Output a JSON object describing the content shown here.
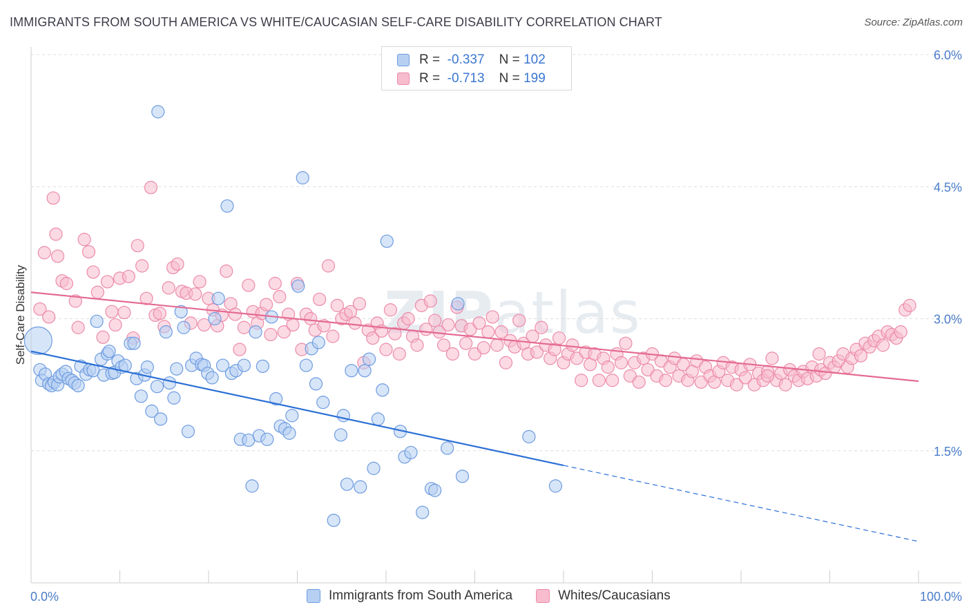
{
  "title": "IMMIGRANTS FROM SOUTH AMERICA VS WHITE/CAUCASIAN SELF-CARE DISABILITY CORRELATION CHART",
  "source": "Source: ZipAtlas.com",
  "watermark": {
    "zip": "ZIP",
    "atlas": "atlas"
  },
  "legend": {
    "rows": [
      {
        "r_label": "R =",
        "r_value": "-0.337",
        "n_label": "N =",
        "n_value": "102"
      },
      {
        "r_label": "R =",
        "r_value": "-0.713",
        "n_label": "N =",
        "n_value": "199"
      }
    ]
  },
  "colors": {
    "blue_fill": "#b7d0f2",
    "blue_stroke": "#6d9be0",
    "blue_line": "#2b6fd6",
    "pink_fill": "#f7bccd",
    "pink_stroke": "#ec8aa8",
    "pink_line": "#e46a92",
    "grid": "#dddddd",
    "axis_text": "#4a7cc9"
  },
  "chart_data": {
    "type": "scatter",
    "title": "IMMIGRANTS FROM SOUTH AMERICA VS WHITE/CAUCASIAN SELF-CARE DISABILITY CORRELATION CHART",
    "xlabel": "",
    "ylabel": "Self-Care Disability",
    "xlim": [
      0,
      100
    ],
    "ylim": [
      0,
      6.2
    ],
    "x_tick_labels": [
      "0.0%",
      "100.0%"
    ],
    "y_ticks": [
      1.5,
      3.0,
      4.5,
      6.0
    ],
    "y_tick_labels": [
      "1.5%",
      "3.0%",
      "4.5%",
      "6.0%"
    ],
    "grid": true,
    "legend_position": "bottom",
    "series": [
      {
        "name": "Immigrants from South America",
        "color": "#6d9be0",
        "trend": {
          "x0": 0,
          "y0": 2.63,
          "x1": 100,
          "y1": 0.47,
          "solid_until": 60
        },
        "points": [
          [
            0.8,
            2.75
          ],
          [
            1,
            2.42
          ],
          [
            1.2,
            2.3
          ],
          [
            1.6,
            2.37
          ],
          [
            2,
            2.26
          ],
          [
            2.3,
            2.24
          ],
          [
            2.6,
            2.28
          ],
          [
            3,
            2.25
          ],
          [
            3.2,
            2.34
          ],
          [
            3.5,
            2.37
          ],
          [
            3.9,
            2.4
          ],
          [
            4.2,
            2.32
          ],
          [
            4.6,
            2.3
          ],
          [
            4.9,
            2.27
          ],
          [
            5.3,
            2.24
          ],
          [
            5.6,
            2.46
          ],
          [
            6.2,
            2.37
          ],
          [
            6.6,
            2.42
          ],
          [
            7,
            2.41
          ],
          [
            7.4,
            2.97
          ],
          [
            7.9,
            2.54
          ],
          [
            8.2,
            2.36
          ],
          [
            8.6,
            2.6
          ],
          [
            8.8,
            2.63
          ],
          [
            9.1,
            2.38
          ],
          [
            9.4,
            2.39
          ],
          [
            9.8,
            2.52
          ],
          [
            10.2,
            2.45
          ],
          [
            10.6,
            2.47
          ],
          [
            11.2,
            2.72
          ],
          [
            11.6,
            2.72
          ],
          [
            11.9,
            2.32
          ],
          [
            12.4,
            2.12
          ],
          [
            12.8,
            2.36
          ],
          [
            13.1,
            2.45
          ],
          [
            13.6,
            1.95
          ],
          [
            14.2,
            2.23
          ],
          [
            14.6,
            1.86
          ],
          [
            15.2,
            2.85
          ],
          [
            15.6,
            2.27
          ],
          [
            16.1,
            2.1
          ],
          [
            16.4,
            2.43
          ],
          [
            16.9,
            3.08
          ],
          [
            17.2,
            2.9
          ],
          [
            17.7,
            1.72
          ],
          [
            18.1,
            2.47
          ],
          [
            18.6,
            2.55
          ],
          [
            19.2,
            2.48
          ],
          [
            19.5,
            2.47
          ],
          [
            19.9,
            2.38
          ],
          [
            14.3,
            5.35
          ],
          [
            20.4,
            2.33
          ],
          [
            20.7,
            3.0
          ],
          [
            21.1,
            3.23
          ],
          [
            21.6,
            2.47
          ],
          [
            22.1,
            4.28
          ],
          [
            22.6,
            2.38
          ],
          [
            23.1,
            2.41
          ],
          [
            23.6,
            1.63
          ],
          [
            24,
            2.47
          ],
          [
            24.5,
            1.62
          ],
          [
            24.9,
            1.1
          ],
          [
            25.3,
            2.85
          ],
          [
            25.7,
            1.67
          ],
          [
            26.1,
            2.46
          ],
          [
            26.6,
            1.63
          ],
          [
            27.1,
            3.02
          ],
          [
            27.6,
            2.09
          ],
          [
            28.1,
            1.78
          ],
          [
            28.6,
            1.75
          ],
          [
            29.1,
            1.7
          ],
          [
            29.4,
            1.9
          ],
          [
            30.1,
            3.37
          ],
          [
            30.6,
            4.6
          ],
          [
            31,
            2.47
          ],
          [
            31.6,
            2.66
          ],
          [
            32.1,
            2.26
          ],
          [
            32.4,
            2.73
          ],
          [
            32.9,
            2.05
          ],
          [
            34.1,
            0.71
          ],
          [
            34.9,
            1.68
          ],
          [
            35.2,
            1.9
          ],
          [
            35.6,
            1.12
          ],
          [
            36.1,
            2.41
          ],
          [
            37.1,
            1.09
          ],
          [
            37.6,
            2.41
          ],
          [
            38.1,
            2.54
          ],
          [
            38.6,
            1.3
          ],
          [
            39.1,
            1.86
          ],
          [
            39.6,
            2.19
          ],
          [
            40.1,
            3.88
          ],
          [
            41.6,
            1.72
          ],
          [
            42.1,
            1.43
          ],
          [
            42.8,
            1.48
          ],
          [
            44.1,
            0.8
          ],
          [
            45.1,
            1.07
          ],
          [
            45.5,
            1.05
          ],
          [
            46.9,
            1.53
          ],
          [
            48.1,
            3.17
          ],
          [
            48.6,
            1.21
          ],
          [
            56.1,
            1.66
          ],
          [
            59.1,
            1.1
          ]
        ]
      },
      {
        "name": "Whites/Caucasians",
        "color": "#ec8aa8",
        "trend": {
          "x0": 0,
          "y0": 3.3,
          "x1": 100,
          "y1": 2.29
        },
        "points": [
          [
            1,
            3.11
          ],
          [
            1.5,
            3.75
          ],
          [
            2,
            3.02
          ],
          [
            2.5,
            4.37
          ],
          [
            2.8,
            3.96
          ],
          [
            3,
            3.71
          ],
          [
            3.5,
            3.43
          ],
          [
            4,
            3.4
          ],
          [
            5,
            3.2
          ],
          [
            5.3,
            2.9
          ],
          [
            6,
            3.9
          ],
          [
            6.5,
            3.76
          ],
          [
            7,
            3.53
          ],
          [
            7.5,
            3.3
          ],
          [
            8.1,
            2.79
          ],
          [
            8.6,
            3.42
          ],
          [
            9.1,
            3.08
          ],
          [
            9.5,
            2.93
          ],
          [
            10,
            3.46
          ],
          [
            10.5,
            3.07
          ],
          [
            11,
            3.48
          ],
          [
            11.5,
            2.78
          ],
          [
            12,
            3.83
          ],
          [
            12.5,
            3.6
          ],
          [
            13,
            3.23
          ],
          [
            13.5,
            4.49
          ],
          [
            14,
            3.04
          ],
          [
            14.5,
            3.06
          ],
          [
            15,
            2.91
          ],
          [
            15.5,
            3.35
          ],
          [
            16,
            3.58
          ],
          [
            16.5,
            3.62
          ],
          [
            17,
            3.31
          ],
          [
            17.5,
            3.29
          ],
          [
            18,
            2.95
          ],
          [
            18.5,
            3.28
          ],
          [
            19,
            3.42
          ],
          [
            19.5,
            2.93
          ],
          [
            20,
            3.23
          ],
          [
            20.5,
            3.1
          ],
          [
            21,
            2.92
          ],
          [
            21.5,
            3.04
          ],
          [
            22,
            3.54
          ],
          [
            22.5,
            3.17
          ],
          [
            23,
            3.05
          ],
          [
            23.5,
            2.65
          ],
          [
            24,
            2.9
          ],
          [
            24.5,
            3.38
          ],
          [
            25,
            3.08
          ],
          [
            25.5,
            2.95
          ],
          [
            26,
            3.06
          ],
          [
            26.5,
            3.16
          ],
          [
            27,
            2.82
          ],
          [
            27.5,
            3.4
          ],
          [
            28,
            3.25
          ],
          [
            28.5,
            2.85
          ],
          [
            29,
            3.05
          ],
          [
            29.5,
            2.93
          ],
          [
            30,
            3.4
          ],
          [
            30.5,
            2.65
          ],
          [
            31,
            3.05
          ],
          [
            31.5,
            3.0
          ],
          [
            32,
            2.87
          ],
          [
            32.5,
            3.22
          ],
          [
            33,
            2.92
          ],
          [
            33.5,
            3.6
          ],
          [
            34,
            2.8
          ],
          [
            34.5,
            3.15
          ],
          [
            35,
            3.0
          ],
          [
            35.5,
            3.05
          ],
          [
            36,
            3.08
          ],
          [
            36.5,
            2.95
          ],
          [
            37,
            3.17
          ],
          [
            37.5,
            2.5
          ],
          [
            38,
            2.87
          ],
          [
            38.5,
            2.78
          ],
          [
            39,
            2.95
          ],
          [
            39.5,
            2.86
          ],
          [
            40,
            2.65
          ],
          [
            40.5,
            3.1
          ],
          [
            41,
            2.83
          ],
          [
            41.5,
            2.6
          ],
          [
            42,
            2.95
          ],
          [
            42.5,
            3.0
          ],
          [
            43,
            2.8
          ],
          [
            43.5,
            2.7
          ],
          [
            44,
            3.15
          ],
          [
            44.5,
            2.88
          ],
          [
            45,
            3.2
          ],
          [
            45.5,
            2.98
          ],
          [
            46,
            2.85
          ],
          [
            46.5,
            2.7
          ],
          [
            47,
            2.93
          ],
          [
            47.5,
            2.6
          ],
          [
            48,
            3.13
          ],
          [
            48.5,
            2.92
          ],
          [
            49,
            2.72
          ],
          [
            49.5,
            2.88
          ],
          [
            50,
            2.6
          ],
          [
            50.5,
            2.95
          ],
          [
            51,
            2.67
          ],
          [
            51.5,
            2.85
          ],
          [
            52,
            3.02
          ],
          [
            52.5,
            2.7
          ],
          [
            53,
            2.85
          ],
          [
            53.5,
            2.5
          ],
          [
            54,
            2.75
          ],
          [
            54.5,
            2.68
          ],
          [
            55,
            2.98
          ],
          [
            55.5,
            2.72
          ],
          [
            56,
            2.6
          ],
          [
            56.5,
            2.8
          ],
          [
            57,
            2.62
          ],
          [
            57.5,
            2.9
          ],
          [
            58,
            2.7
          ],
          [
            58.5,
            2.55
          ],
          [
            59,
            2.65
          ],
          [
            59.5,
            2.78
          ],
          [
            60,
            2.5
          ],
          [
            60.5,
            2.6
          ],
          [
            61,
            2.7
          ],
          [
            61.5,
            2.55
          ],
          [
            62,
            2.3
          ],
          [
            62.5,
            2.62
          ],
          [
            63,
            2.48
          ],
          [
            63.5,
            2.6
          ],
          [
            64,
            2.3
          ],
          [
            64.5,
            2.55
          ],
          [
            65,
            2.45
          ],
          [
            65.5,
            2.3
          ],
          [
            66,
            2.6
          ],
          [
            66.5,
            2.5
          ],
          [
            67,
            2.72
          ],
          [
            67.5,
            2.35
          ],
          [
            68,
            2.5
          ],
          [
            68.5,
            2.28
          ],
          [
            69,
            2.55
          ],
          [
            69.5,
            2.42
          ],
          [
            70,
            2.6
          ],
          [
            70.5,
            2.35
          ],
          [
            71,
            2.52
          ],
          [
            71.5,
            2.3
          ],
          [
            72,
            2.45
          ],
          [
            72.5,
            2.55
          ],
          [
            73,
            2.35
          ],
          [
            73.5,
            2.48
          ],
          [
            74,
            2.3
          ],
          [
            74.5,
            2.4
          ],
          [
            75,
            2.52
          ],
          [
            75.5,
            2.28
          ],
          [
            76,
            2.45
          ],
          [
            76.5,
            2.35
          ],
          [
            77,
            2.28
          ],
          [
            77.5,
            2.4
          ],
          [
            78,
            2.5
          ],
          [
            78.5,
            2.3
          ],
          [
            79,
            2.45
          ],
          [
            79.5,
            2.25
          ],
          [
            80,
            2.42
          ],
          [
            80.5,
            2.33
          ],
          [
            81,
            2.48
          ],
          [
            81.5,
            2.25
          ],
          [
            82,
            2.38
          ],
          [
            82.5,
            2.3
          ],
          [
            83,
            2.4
          ],
          [
            83.5,
            2.55
          ],
          [
            84,
            2.3
          ],
          [
            84.5,
            2.38
          ],
          [
            85,
            2.25
          ],
          [
            85.5,
            2.42
          ],
          [
            86,
            2.35
          ],
          [
            86.5,
            2.3
          ],
          [
            87,
            2.4
          ],
          [
            87.5,
            2.32
          ],
          [
            88,
            2.45
          ],
          [
            88.5,
            2.35
          ],
          [
            89,
            2.42
          ],
          [
            89.5,
            2.38
          ],
          [
            90,
            2.5
          ],
          [
            90.5,
            2.45
          ],
          [
            91,
            2.52
          ],
          [
            91.5,
            2.6
          ],
          [
            92,
            2.45
          ],
          [
            92.5,
            2.55
          ],
          [
            93,
            2.65
          ],
          [
            93.5,
            2.58
          ],
          [
            94,
            2.72
          ],
          [
            94.5,
            2.68
          ],
          [
            95,
            2.75
          ],
          [
            95.5,
            2.8
          ],
          [
            96,
            2.7
          ],
          [
            96.5,
            2.85
          ],
          [
            97,
            2.82
          ],
          [
            97.5,
            2.78
          ],
          [
            98,
            2.85
          ],
          [
            98.5,
            3.1
          ],
          [
            99,
            3.15
          ],
          [
            88.8,
            2.6
          ],
          [
            83,
            2.35
          ]
        ]
      }
    ]
  },
  "bottom_legend": [
    "Immigrants from South America",
    "Whites/Caucasians"
  ]
}
